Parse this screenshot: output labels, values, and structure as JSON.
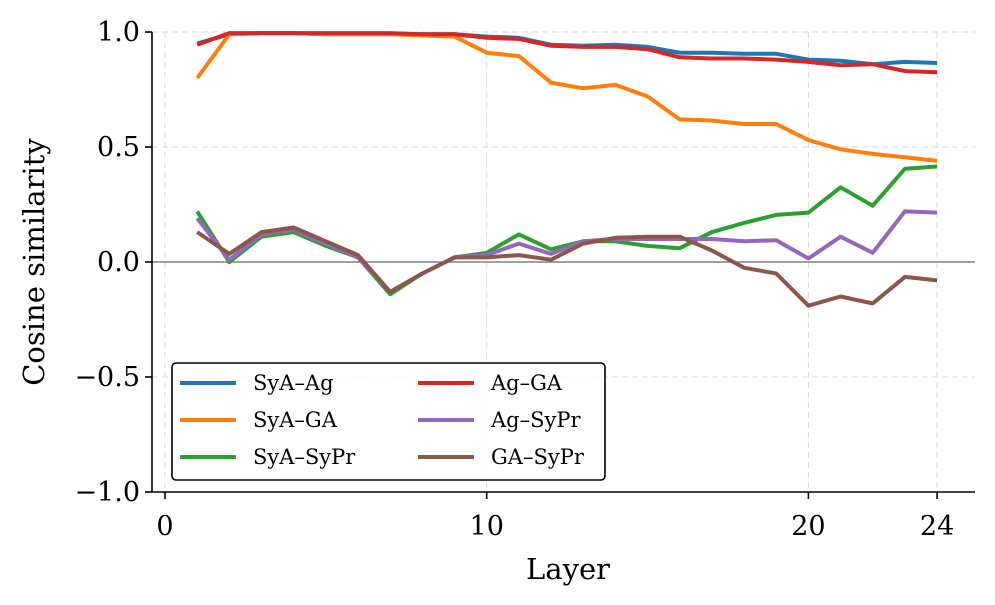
{
  "chart_data": {
    "type": "line",
    "title": "",
    "xlabel": "Layer",
    "ylabel": "Cosine similarity",
    "xlim": [
      -0.2,
      25.2
    ],
    "ylim": [
      -1.0,
      1.0
    ],
    "xticks": [
      0,
      10,
      20,
      24
    ],
    "xtick_labels": [
      "0",
      "10",
      "20",
      "24"
    ],
    "yticks": [
      1.0,
      0.5,
      0.0,
      -0.5,
      -1.0
    ],
    "ytick_labels": [
      "1.0",
      "0.5",
      "0.0",
      "−0.5",
      "−1.0"
    ],
    "grid": true,
    "reference_line": 0.0,
    "legend_position": "lower-left",
    "legend_columns": 2,
    "x": [
      1,
      2,
      3,
      4,
      5,
      6,
      7,
      8,
      9,
      10,
      11,
      12,
      13,
      14,
      15,
      16,
      17,
      18,
      19,
      20,
      21,
      22,
      23,
      24
    ],
    "series": [
      {
        "name": "SyA–Ag",
        "color": "#1f77b4",
        "values": [
          0.95,
          0.99,
          0.995,
          0.995,
          0.99,
          0.99,
          0.99,
          0.99,
          0.99,
          0.98,
          0.975,
          0.945,
          0.94,
          0.945,
          0.935,
          0.91,
          0.91,
          0.905,
          0.905,
          0.88,
          0.875,
          0.86,
          0.87,
          0.865
        ]
      },
      {
        "name": "SyA–GA",
        "color": "#ff7f0e",
        "values": [
          0.8,
          0.99,
          0.995,
          0.995,
          0.99,
          0.99,
          0.99,
          0.985,
          0.98,
          0.91,
          0.895,
          0.78,
          0.755,
          0.77,
          0.72,
          0.62,
          0.615,
          0.6,
          0.6,
          0.53,
          0.49,
          0.47,
          0.455,
          0.44
        ]
      },
      {
        "name": "SyA–SyPr",
        "color": "#2ca02c",
        "values": [
          0.22,
          0.0,
          0.11,
          0.13,
          0.07,
          0.02,
          -0.14,
          -0.05,
          0.02,
          0.04,
          0.12,
          0.055,
          0.09,
          0.09,
          0.07,
          0.06,
          0.13,
          0.17,
          0.205,
          0.215,
          0.325,
          0.245,
          0.405,
          0.415
        ]
      },
      {
        "name": "Ag–GA",
        "color": "#d62728",
        "values": [
          0.945,
          0.995,
          0.995,
          0.995,
          0.995,
          0.995,
          0.995,
          0.99,
          0.99,
          0.975,
          0.97,
          0.94,
          0.935,
          0.935,
          0.925,
          0.89,
          0.885,
          0.885,
          0.88,
          0.87,
          0.855,
          0.86,
          0.83,
          0.825
        ]
      },
      {
        "name": "Ag–SyPr",
        "color": "#9467bd",
        "values": [
          0.19,
          0.01,
          0.12,
          0.14,
          0.08,
          0.02,
          -0.13,
          -0.05,
          0.02,
          0.03,
          0.08,
          0.035,
          0.09,
          0.1,
          0.1,
          0.1,
          0.1,
          0.09,
          0.095,
          0.015,
          0.11,
          0.04,
          0.22,
          0.215
        ]
      },
      {
        "name": "GA–SyPr",
        "color": "#8c564b",
        "values": [
          0.13,
          0.035,
          0.13,
          0.15,
          0.09,
          0.03,
          -0.13,
          -0.05,
          0.02,
          0.02,
          0.03,
          0.01,
          0.08,
          0.105,
          0.11,
          0.11,
          0.05,
          -0.025,
          -0.05,
          -0.19,
          -0.15,
          -0.18,
          -0.065,
          -0.08
        ]
      }
    ]
  }
}
